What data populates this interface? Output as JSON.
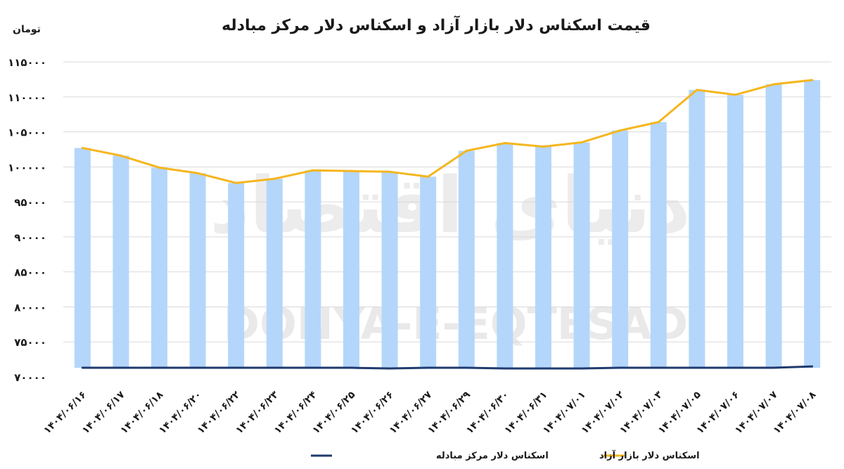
{
  "watermark": {
    "latin": "DONYA-E-EQTESAD",
    "persian": "دنیای اقتصاد"
  },
  "chart_data": {
    "type": "bar",
    "title": "قیمت اسکناس دلار بازار آزاد و اسکناس دلار مرکز مبادله",
    "unit_label": "تومان",
    "xlabel": "",
    "ylabel": "",
    "ylim": [
      70000,
      115000
    ],
    "yticks": [
      70000,
      75000,
      80000,
      85000,
      90000,
      95000,
      100000,
      105000,
      110000,
      115000
    ],
    "ytick_labels": [
      "۷۰۰۰۰",
      "۷۵۰۰۰",
      "۸۰۰۰۰",
      "۸۵۰۰۰",
      "۹۰۰۰۰",
      "۹۵۰۰۰",
      "۱۰۰۰۰۰",
      "۱۰۵۰۰۰",
      "۱۱۰۰۰۰",
      "۱۱۵۰۰۰"
    ],
    "grid": true,
    "legend_position": "bottom",
    "categories": [
      "۱۴۰۴/۰۶/۱۶",
      "۱۴۰۴/۰۶/۱۷",
      "۱۴۰۴/۰۶/۱۸",
      "۱۴۰۴/۰۶/۲۰",
      "۱۴۰۴/۰۶/۲۲",
      "۱۴۰۴/۰۶/۲۳",
      "۱۴۰۴/۰۶/۲۴",
      "۱۴۰۴/۰۶/۲۵",
      "۱۴۰۴/۰۶/۲۶",
      "۱۴۰۴/۰۶/۲۷",
      "۱۴۰۴/۰۶/۲۹",
      "۱۴۰۴/۰۶/۳۰",
      "۱۴۰۴/۰۶/۳۱",
      "۱۴۰۴/۰۷/۰۱",
      "۱۴۰۴/۰۷/۰۲",
      "۱۴۰۴/۰۷/۰۳",
      "۱۴۰۴/۰۷/۰۵",
      "۱۴۰۴/۰۷/۰۶",
      "۱۴۰۴/۰۷/۰۷",
      "۱۴۰۴/۰۷/۰۸"
    ],
    "series": [
      {
        "name": "اسکناس دلار بازار آزاد",
        "render": "bar+line",
        "bar_color": "#b4d6fb",
        "line_color": "#f5b61e",
        "values": [
          102700,
          101600,
          99900,
          99100,
          97700,
          98300,
          99500,
          99400,
          99300,
          98600,
          102300,
          103400,
          102900,
          103500,
          105200,
          106400,
          111000,
          110300,
          111800,
          112400
        ]
      },
      {
        "name": "اسکناس دلار مرکز مبادله",
        "render": "line",
        "line_color": "#1f3a6e",
        "values": [
          71300,
          71300,
          71300,
          71300,
          71300,
          71300,
          71300,
          71300,
          71200,
          71300,
          71300,
          71200,
          71200,
          71200,
          71300,
          71300,
          71300,
          71300,
          71300,
          71500
        ]
      }
    ]
  }
}
